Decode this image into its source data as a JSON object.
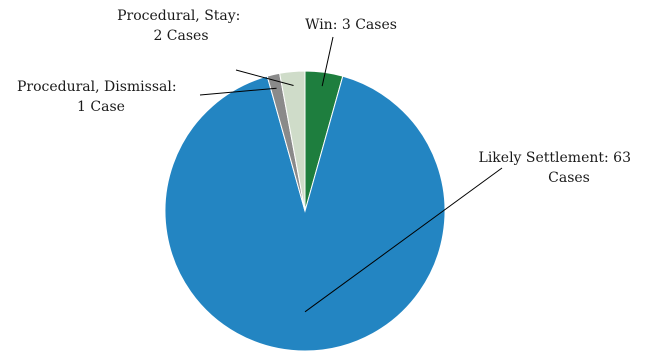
{
  "chart_data": {
    "type": "pie",
    "slices": [
      {
        "name": "Win",
        "value": 3,
        "color": "#1e7e3e",
        "label_lines": [
          "Win: 3 Cases"
        ]
      },
      {
        "name": "Likely Settlement",
        "value": 63,
        "color": "#2385c2",
        "label_lines": [
          "Likely Settlement:  63",
          "Cases"
        ]
      },
      {
        "name": "Procedural, Dismissal",
        "value": 1,
        "color": "#8a8a8a",
        "label_lines": [
          "Procedural, Dismissal:",
          "1 Case"
        ]
      },
      {
        "name": "Procedural, Stay",
        "value": 2,
        "color": "#cfdcc9",
        "label_lines": [
          "Procedural, Stay:",
          "2 Cases"
        ]
      }
    ],
    "start_angle_deg": 0,
    "direction": "clockwise",
    "legend": "none"
  }
}
